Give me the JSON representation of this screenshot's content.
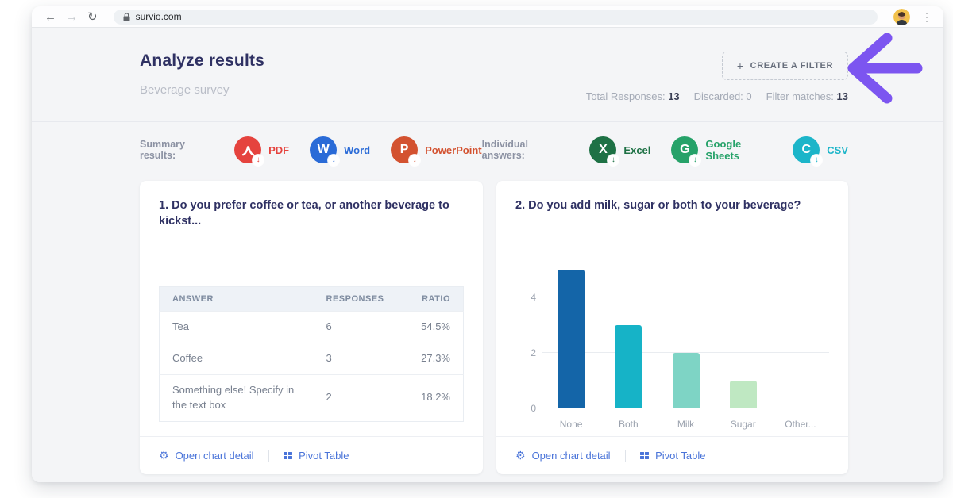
{
  "browser": {
    "url": "survio.com",
    "back_icon": "←",
    "forward_icon": "→",
    "reload_icon": "↻",
    "menu_icon": "⋮"
  },
  "header": {
    "title": "Analyze results",
    "subtitle": "Beverage survey",
    "filter_button": {
      "plus": "+",
      "label": "CREATE A FILTER"
    }
  },
  "stats": {
    "total_label": "Total Responses:",
    "total_value": "13",
    "discarded_label": "Discarded:",
    "discarded_value": "0",
    "filter_label": "Filter matches:",
    "filter_value": "13"
  },
  "exports": {
    "summary_label": "Summary results:",
    "summary_items": [
      {
        "label": "PDF",
        "letter": "",
        "color": "#e5433e",
        "underline": true
      },
      {
        "label": "Word",
        "letter": "W",
        "color": "#2a6bd7",
        "underline": false
      },
      {
        "label": "PowerPoint",
        "letter": "P",
        "color": "#d35230",
        "underline": false
      }
    ],
    "individual_label": "Individual answers:",
    "individual_items": [
      {
        "label": "Excel",
        "letter": "X",
        "color": "#1e7145",
        "underline": false
      },
      {
        "label": "Google Sheets",
        "letter": "G",
        "color": "#26a269",
        "underline": false
      },
      {
        "label": "CSV",
        "letter": "C",
        "color": "#1cb5c9",
        "underline": false
      }
    ],
    "download_arrow": "↓"
  },
  "question1": {
    "title": "1. Do you prefer coffee or tea, or another beverage to kickst...",
    "table": {
      "headers": [
        "Answer",
        "Responses",
        "Ratio"
      ],
      "rows": [
        [
          "Tea",
          "6",
          "54.5%"
        ],
        [
          "Coffee",
          "3",
          "27.3%"
        ],
        [
          "Something else! Specify in the text box",
          "2",
          "18.2%"
        ]
      ]
    }
  },
  "question2": {
    "title": "2. Do you add milk, sugar or both to your beverage?"
  },
  "card_footer": {
    "open_chart_label": "Open chart detail",
    "pivot_label": "Pivot Table",
    "gear_icon": "⚙"
  },
  "chart_data": {
    "type": "bar",
    "title": "2. Do you add milk, sugar or both to your beverage?",
    "categories": [
      "None",
      "Both",
      "Milk",
      "Sugar",
      "Other..."
    ],
    "values": [
      5,
      3,
      2,
      1,
      0
    ],
    "colors": [
      "#1465a8",
      "#16b3c7",
      "#7ed4c5",
      "#bfe8c2",
      "#cccccc"
    ],
    "yticks": [
      0,
      2,
      4
    ],
    "ylim": [
      0,
      5.3
    ],
    "grid": true,
    "xlabel": "",
    "ylabel": "",
    "legend": "none"
  },
  "annotation": {
    "arrow_color": "#7c55f0"
  }
}
